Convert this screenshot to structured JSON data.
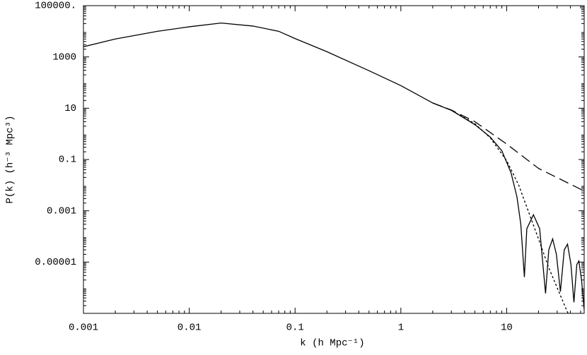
{
  "chart_data": {
    "type": "line",
    "xlabel": "k (h Mpc⁻¹)",
    "ylabel": "P(k)  (h⁻³ Mpc³)",
    "xscale": "log",
    "yscale": "log",
    "xlim": [
      0.001,
      54
    ],
    "ylim": [
      1e-07,
      100000
    ],
    "xticks": [
      0.001,
      0.01,
      0.1,
      1,
      10
    ],
    "yticks": [
      {
        "value": 100000,
        "label": "100000."
      },
      1000,
      10,
      0.1,
      0.001,
      1e-05
    ],
    "series": [
      {
        "color": "#000000",
        "dash": "solid",
        "x": [
          0.001,
          0.002,
          0.005,
          0.01,
          0.02,
          0.04,
          0.07,
          0.1,
          0.2,
          0.5,
          1,
          2,
          3,
          5,
          7,
          9,
          11,
          12.5,
          13.6,
          14.7,
          15.5,
          17.9,
          20.5,
          23.3,
          25,
          27.2,
          29.5,
          32.2,
          35,
          37.6,
          40.5,
          43.2,
          46,
          48.1,
          51,
          54
        ],
        "values": [
          2500,
          5000,
          10000,
          15000,
          21000,
          16000,
          10000,
          5200,
          1600,
          290,
          76,
          16,
          8.3,
          2.3,
          0.75,
          0.22,
          0.03,
          0.0035,
          0.0003,
          2.6e-06,
          0.0002,
          0.0007,
          0.0002,
          6e-07,
          3e-05,
          8e-05,
          2e-05,
          7e-07,
          3e-05,
          5e-05,
          8e-06,
          2.7e-07,
          8e-06,
          1.1e-05,
          2e-06,
          1.4e-07
        ]
      },
      {
        "color": "#000000",
        "dash": "dashed",
        "x": [
          2,
          3,
          5,
          10,
          20,
          54
        ],
        "values": [
          16,
          8.5,
          3,
          0.4,
          0.045,
          0.0059
        ]
      },
      {
        "color": "#000000",
        "dash": "dotted",
        "x": [
          2,
          3,
          5,
          7,
          10,
          13,
          15,
          20,
          25,
          30,
          35,
          38
        ],
        "values": [
          16,
          8.3,
          2.5,
          0.7,
          0.09,
          0.01,
          0.002,
          8e-05,
          6e-06,
          1e-06,
          2.2e-07,
          1e-07
        ]
      }
    ]
  }
}
